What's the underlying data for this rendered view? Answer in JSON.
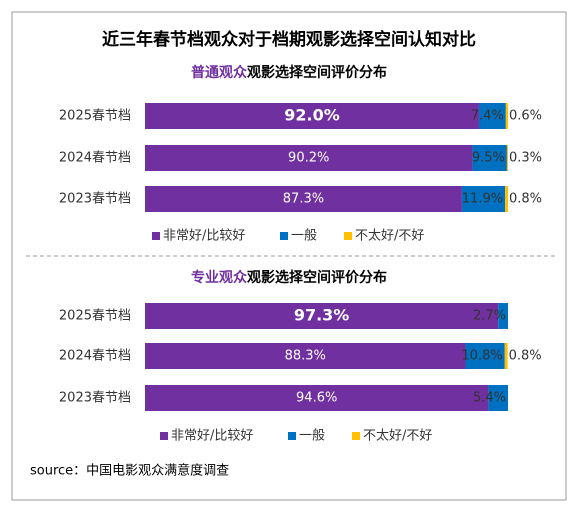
{
  "title": "近三年春节档观众对于档期观影选择空间认知对比",
  "source": "source：中国电影观众满意度调查",
  "chart_data": [
    {
      "type": "bar",
      "stacked": true,
      "orientation": "horizontal",
      "title": [
        "普通观众",
        "观影选择空间评价分布"
      ],
      "categories": [
        "2025春节档",
        "2024春节档",
        "2023春节档"
      ],
      "xlim": [
        0,
        100
      ],
      "series": [
        {
          "name": "非常好/比较好",
          "color": "#7030a0",
          "values": [
            92.0,
            90.2,
            87.3
          ],
          "value_labels": [
            "92.0%",
            "90.2%",
            "87.3%"
          ]
        },
        {
          "name": "一般",
          "color": "#0070c0",
          "values": [
            7.4,
            9.5,
            11.9
          ],
          "value_labels": [
            "7.4%",
            "9.5%",
            "11.9%"
          ]
        },
        {
          "name": "不太好/不好",
          "color": "#ffc000",
          "values": [
            0.6,
            0.3,
            0.8
          ],
          "value_labels": [
            "0.6%",
            "0.3%",
            "0.8%"
          ]
        }
      ]
    },
    {
      "type": "bar",
      "stacked": true,
      "orientation": "horizontal",
      "title": [
        "专业观众",
        "观影选择空间评价分布"
      ],
      "categories": [
        "2025春节档",
        "2024春节档",
        "2023春节档"
      ],
      "xlim": [
        0,
        100
      ],
      "series": [
        {
          "name": "非常好/比较好",
          "color": "#7030a0",
          "values": [
            97.3,
            88.3,
            94.6
          ],
          "value_labels": [
            "97.3%",
            "88.3%",
            "94.6%"
          ]
        },
        {
          "name": "一般",
          "color": "#0070c0",
          "values": [
            2.7,
            10.8,
            5.4
          ],
          "value_labels": [
            "2.7%",
            "10.8%",
            "5.4%"
          ]
        },
        {
          "name": "不太好/不好",
          "color": "#ffc000",
          "values": [
            null,
            0.8,
            null
          ],
          "value_labels": [
            null,
            "0.8%",
            null
          ]
        }
      ]
    }
  ]
}
